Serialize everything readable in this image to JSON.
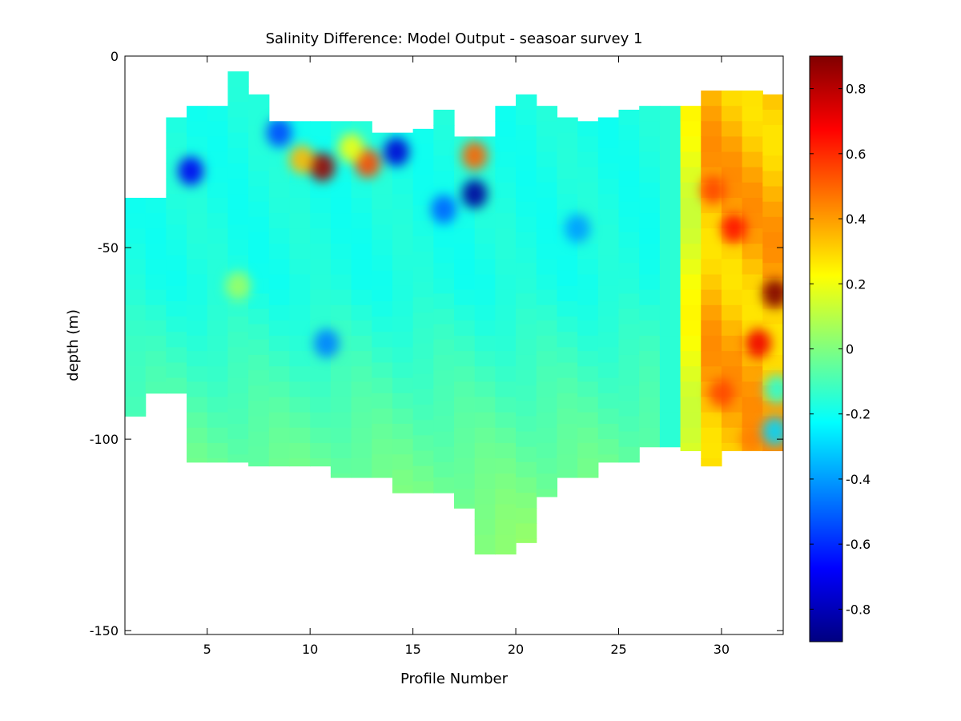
{
  "chart_data": {
    "type": "heatmap",
    "title": "Salinity Difference: Model Output - seasoar survey 1",
    "xlabel": "Profile Number",
    "ylabel": "depth (m)",
    "xlim": [
      1,
      33
    ],
    "ylim": [
      -151,
      0
    ],
    "xticks": [
      5,
      10,
      15,
      20,
      25,
      30
    ],
    "yticks": [
      0,
      -50,
      -100,
      -150
    ],
    "clim": [
      -0.9,
      0.9
    ],
    "colorbar_ticks": [
      0.8,
      0.6,
      0.4,
      0.2,
      0,
      -0.2,
      -0.4,
      -0.6,
      -0.8
    ],
    "colormap": "jet",
    "grid": false,
    "columns": [
      {
        "profile": 1.5,
        "top": -37,
        "bottom": -94
      },
      {
        "profile": 2.5,
        "top": -37,
        "bottom": -88
      },
      {
        "profile": 3.5,
        "top": -16,
        "bottom": -88
      },
      {
        "profile": 4.5,
        "top": -13,
        "bottom": -106
      },
      {
        "profile": 5.5,
        "top": -13,
        "bottom": -106
      },
      {
        "profile": 6.5,
        "top": -4,
        "bottom": -106
      },
      {
        "profile": 7.5,
        "top": -10,
        "bottom": -107
      },
      {
        "profile": 8.5,
        "top": -17,
        "bottom": -107
      },
      {
        "profile": 9.5,
        "top": -17,
        "bottom": -107
      },
      {
        "profile": 10.5,
        "top": -17,
        "bottom": -107
      },
      {
        "profile": 11.5,
        "top": -17,
        "bottom": -110
      },
      {
        "profile": 12.5,
        "top": -17,
        "bottom": -110
      },
      {
        "profile": 13.5,
        "top": -20,
        "bottom": -110
      },
      {
        "profile": 14.5,
        "top": -20,
        "bottom": -114
      },
      {
        "profile": 15.5,
        "top": -19,
        "bottom": -114
      },
      {
        "profile": 16.5,
        "top": -14,
        "bottom": -114
      },
      {
        "profile": 17.5,
        "top": -21,
        "bottom": -118
      },
      {
        "profile": 18.5,
        "top": -21,
        "bottom": -130
      },
      {
        "profile": 19.5,
        "top": -13,
        "bottom": -130
      },
      {
        "profile": 20.5,
        "top": -10,
        "bottom": -127
      },
      {
        "profile": 21.5,
        "top": -13,
        "bottom": -115
      },
      {
        "profile": 22.5,
        "top": -16,
        "bottom": -110
      },
      {
        "profile": 23.5,
        "top": -17,
        "bottom": -110
      },
      {
        "profile": 24.5,
        "top": -16,
        "bottom": -106
      },
      {
        "profile": 25.5,
        "top": -14,
        "bottom": -106
      },
      {
        "profile": 26.5,
        "top": -13,
        "bottom": -102
      },
      {
        "profile": 27.5,
        "top": -13,
        "bottom": -102
      },
      {
        "profile": 28.5,
        "top": -13,
        "bottom": -103
      },
      {
        "profile": 29.5,
        "top": -9,
        "bottom": -107
      },
      {
        "profile": 30.5,
        "top": -9,
        "bottom": -103
      },
      {
        "profile": 31.5,
        "top": -9,
        "bottom": -103
      },
      {
        "profile": 32.5,
        "top": -10,
        "bottom": -103
      }
    ],
    "features": [
      {
        "profile": 6.5,
        "depth": -60,
        "value": 0.05
      },
      {
        "profile": 10.6,
        "depth": -29,
        "value": 0.85
      },
      {
        "profile": 9.6,
        "depth": -27,
        "value": 0.35
      },
      {
        "profile": 12.8,
        "depth": -28,
        "value": 0.55
      },
      {
        "profile": 12.0,
        "depth": -24,
        "value": 0.2
      },
      {
        "profile": 14.2,
        "depth": -25,
        "value": -0.75
      },
      {
        "profile": 18.0,
        "depth": -36,
        "value": -0.85
      },
      {
        "profile": 18.0,
        "depth": -26,
        "value": 0.5
      },
      {
        "profile": 4.2,
        "depth": -30,
        "value": -0.7
      },
      {
        "profile": 8.5,
        "depth": -20,
        "value": -0.55
      },
      {
        "profile": 16.5,
        "depth": -40,
        "value": -0.5
      },
      {
        "profile": 10.8,
        "depth": -75,
        "value": -0.45
      },
      {
        "profile": 23.0,
        "depth": -45,
        "value": -0.4
      },
      {
        "profile": 30.6,
        "depth": -45,
        "value": 0.65
      },
      {
        "profile": 29.6,
        "depth": -35,
        "value": 0.55
      },
      {
        "profile": 32.6,
        "depth": -62,
        "value": 0.9
      },
      {
        "profile": 31.8,
        "depth": -75,
        "value": 0.7
      },
      {
        "profile": 30.0,
        "depth": -88,
        "value": 0.55
      },
      {
        "profile": 31.5,
        "depth": -100,
        "value": 0.45
      },
      {
        "profile": 32.6,
        "depth": -98,
        "value": -0.3
      },
      {
        "profile": 32.7,
        "depth": -87,
        "value": -0.15
      }
    ]
  }
}
